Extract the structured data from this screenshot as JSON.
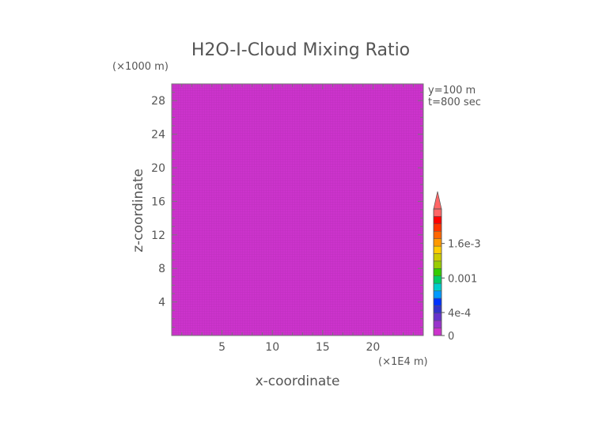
{
  "chart_data": {
    "type": "heatmap",
    "title": "H2O-I-Cloud Mixing Ratio",
    "xlabel": "x-coordinate",
    "ylabel": "z-coordinate",
    "x_unit": "(×1E4 m)",
    "y_unit": "(×1000 m)",
    "x_ticks": [
      5,
      10,
      15,
      20
    ],
    "y_ticks": [
      4,
      8,
      12,
      16,
      20,
      24,
      28
    ],
    "xlim": [
      0,
      25
    ],
    "ylim": [
      0,
      30
    ],
    "annotations": [
      "y=100 m",
      "t=800 sec"
    ],
    "field_value": 0,
    "field_color": "#cc33cc",
    "colorbar": {
      "labels": [
        {
          "text": "1.6e-3",
          "value": 0.0016
        },
        {
          "text": "0.001",
          "value": 0.001
        },
        {
          "text": "4e-4",
          "value": 0.0004
        },
        {
          "text": "0",
          "value": 0
        }
      ],
      "vmin": 0,
      "vmax": 0.0022,
      "extend": "max",
      "colors": [
        "#cc33cc",
        "#9933cc",
        "#6633cc",
        "#3333cc",
        "#0033ff",
        "#0099ff",
        "#00cccc",
        "#00cc66",
        "#33cc00",
        "#99cc00",
        "#cccc00",
        "#ffcc00",
        "#ff9900",
        "#ff6600",
        "#ff3300",
        "#ff0000",
        "#ff6666"
      ]
    }
  }
}
